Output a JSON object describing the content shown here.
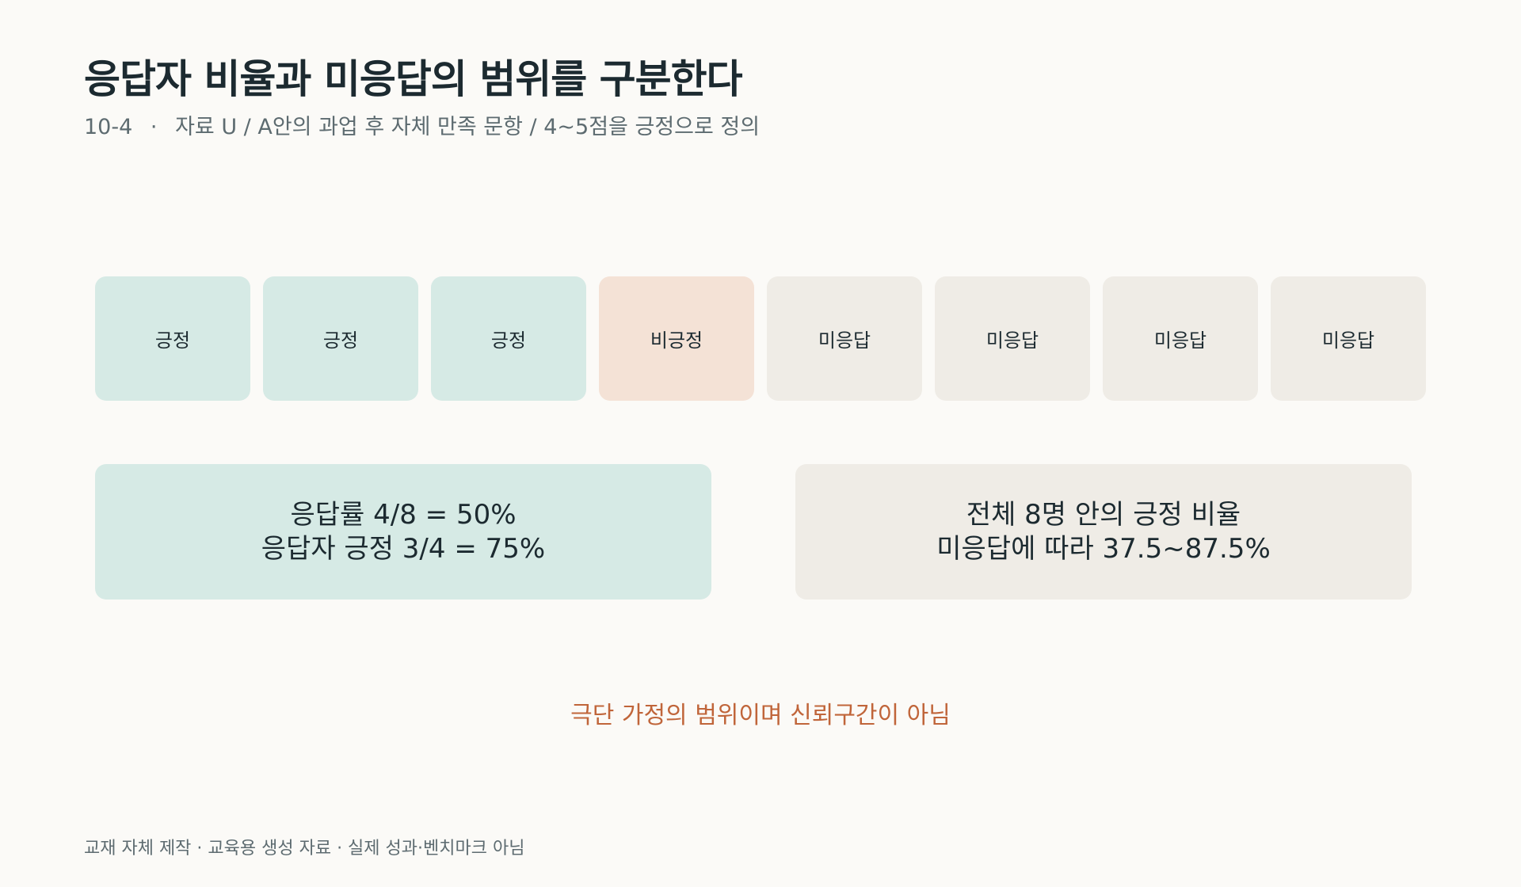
{
  "title": "응답자 비율과 미응답의 범위를 구분한다",
  "subtitle": {
    "code": "10-4",
    "separator": "·",
    "description": "자료 U / A안의 과업 후 자체 만족 문항 / 4~5점을 긍정으로 정의"
  },
  "responses": [
    {
      "label": "긍정",
      "status": "positive"
    },
    {
      "label": "긍정",
      "status": "positive"
    },
    {
      "label": "긍정",
      "status": "positive"
    },
    {
      "label": "비긍정",
      "status": "negative"
    },
    {
      "label": "미응답",
      "status": "missing"
    },
    {
      "label": "미응답",
      "status": "missing"
    },
    {
      "label": "미응답",
      "status": "missing"
    },
    {
      "label": "미응답",
      "status": "missing"
    }
  ],
  "panels": {
    "left": {
      "line1": "응답률 4/8 = 50%",
      "line2": "응답자 긍정 3/4 = 75%"
    },
    "right": {
      "line1": "전체 8명 안의 긍정 비율",
      "line2": "미응답에 따라 37.5~87.5%"
    }
  },
  "note": "극단 가정의 범위이며 신뢰구간이 아님",
  "footer": "교재 자체 제작 · 교육용 생성 자료 · 실제 성과·벤치마크 아님",
  "colors": {
    "positive": "#d6eae5",
    "negative": "#f4e2d6",
    "missing": "#efece6",
    "accent": "#c0653a",
    "text": "#1c2a30",
    "muted": "#5d6b70",
    "background": "#fbfaf7"
  }
}
